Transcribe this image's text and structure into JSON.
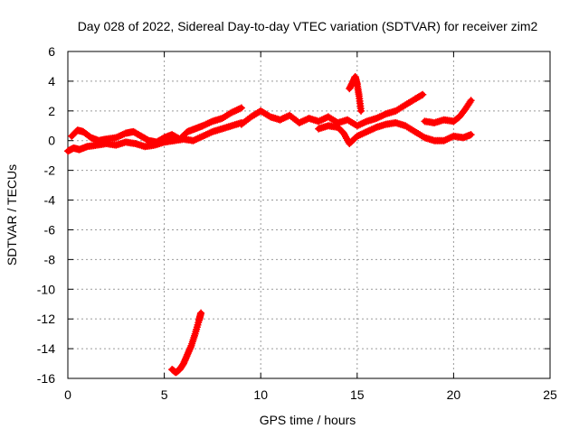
{
  "chart_data": {
    "type": "scatter",
    "title": "Day 028 of 2022, Sidereal Day-to-day VTEC variation (SDTVAR) for receiver zim2",
    "xlabel": "GPS time / hours",
    "ylabel": "SDTVAR / TECUs",
    "xlim": [
      0,
      25
    ],
    "ylim": [
      -16,
      6
    ],
    "x_ticks": [
      0,
      5,
      10,
      15,
      20,
      25
    ],
    "y_ticks": [
      6,
      4,
      2,
      0,
      -2,
      -4,
      -6,
      -8,
      -10,
      -12,
      -14,
      -16
    ],
    "x_tick_labels": [
      "0",
      "5",
      "10",
      "15",
      "20",
      "25"
    ],
    "y_tick_labels": [
      "6",
      "4",
      "2",
      "0",
      "-2",
      "-4",
      "-6",
      "-8",
      "-10",
      "-12",
      "-14",
      "-16"
    ],
    "grid": true,
    "marker": "plus",
    "color": "#ff0000",
    "series": [
      {
        "name": "main-track-low",
        "x": [
          0.0,
          0.3,
          0.6,
          1.0,
          1.5,
          2.0,
          2.5,
          3.0,
          3.5,
          4.0,
          4.5,
          5.0,
          5.5,
          6.0,
          6.5,
          7.0,
          7.5,
          8.0,
          8.5,
          9.0
        ],
        "y": [
          -0.7,
          -0.5,
          -0.6,
          -0.4,
          -0.3,
          -0.2,
          -0.3,
          -0.1,
          -0.2,
          -0.4,
          -0.3,
          -0.1,
          0.0,
          0.1,
          0.0,
          0.3,
          0.6,
          0.8,
          1.0,
          1.2
        ]
      },
      {
        "name": "main-track-high",
        "x": [
          0.2,
          0.5,
          0.8,
          1.2,
          1.6,
          2.0,
          2.5,
          3.0,
          3.4,
          3.8,
          4.2,
          4.6,
          5.0,
          5.4,
          5.8,
          6.2,
          6.6,
          7.0,
          7.5,
          8.0,
          8.5,
          9.0
        ],
        "y": [
          0.3,
          0.7,
          0.6,
          0.2,
          0.0,
          0.1,
          0.2,
          0.5,
          0.6,
          0.3,
          0.0,
          -0.1,
          0.2,
          0.4,
          0.1,
          0.6,
          0.8,
          1.0,
          1.3,
          1.5,
          1.9,
          2.2
        ]
      },
      {
        "name": "midday-track",
        "x": [
          9.0,
          9.5,
          10.0,
          10.5,
          11.0,
          11.5,
          12.0,
          12.5,
          13.0,
          13.5,
          14.0,
          14.5,
          15.0,
          15.5,
          16.0,
          16.5,
          17.0,
          17.5,
          18.0,
          18.4
        ],
        "y": [
          1.1,
          1.6,
          2.0,
          1.6,
          1.4,
          1.7,
          1.2,
          1.5,
          1.3,
          1.6,
          1.2,
          1.4,
          1.0,
          1.3,
          1.5,
          1.8,
          2.0,
          2.4,
          2.8,
          3.1
        ]
      },
      {
        "name": "midday-lower-track",
        "x": [
          13.0,
          13.5,
          14.0,
          14.3,
          14.6,
          15.0,
          15.5,
          16.0,
          16.5,
          17.0,
          17.5,
          18.0,
          18.5,
          19.0,
          19.5,
          20.0,
          20.5,
          20.9
        ],
        "y": [
          0.8,
          1.0,
          0.9,
          0.5,
          -0.2,
          0.3,
          0.6,
          0.9,
          1.1,
          1.2,
          1.0,
          0.6,
          0.2,
          0.0,
          0.0,
          0.3,
          0.2,
          0.4
        ]
      },
      {
        "name": "late-track",
        "x": [
          18.5,
          19.0,
          19.5,
          20.0,
          20.3,
          20.6,
          20.9
        ],
        "y": [
          1.3,
          1.2,
          1.4,
          1.3,
          1.6,
          2.1,
          2.7
        ]
      },
      {
        "name": "spike-track",
        "x": [
          14.6,
          14.8,
          14.9,
          15.0,
          15.1,
          15.2
        ],
        "y": [
          3.5,
          4.0,
          4.3,
          3.8,
          3.0,
          2.0
        ]
      },
      {
        "name": "outlier-track",
        "x": [
          5.4,
          5.6,
          5.8,
          6.0,
          6.2,
          6.4,
          6.6,
          6.8,
          6.9
        ],
        "y": [
          -15.4,
          -15.6,
          -15.4,
          -15.0,
          -14.4,
          -13.8,
          -13.0,
          -12.1,
          -11.6
        ]
      }
    ]
  }
}
